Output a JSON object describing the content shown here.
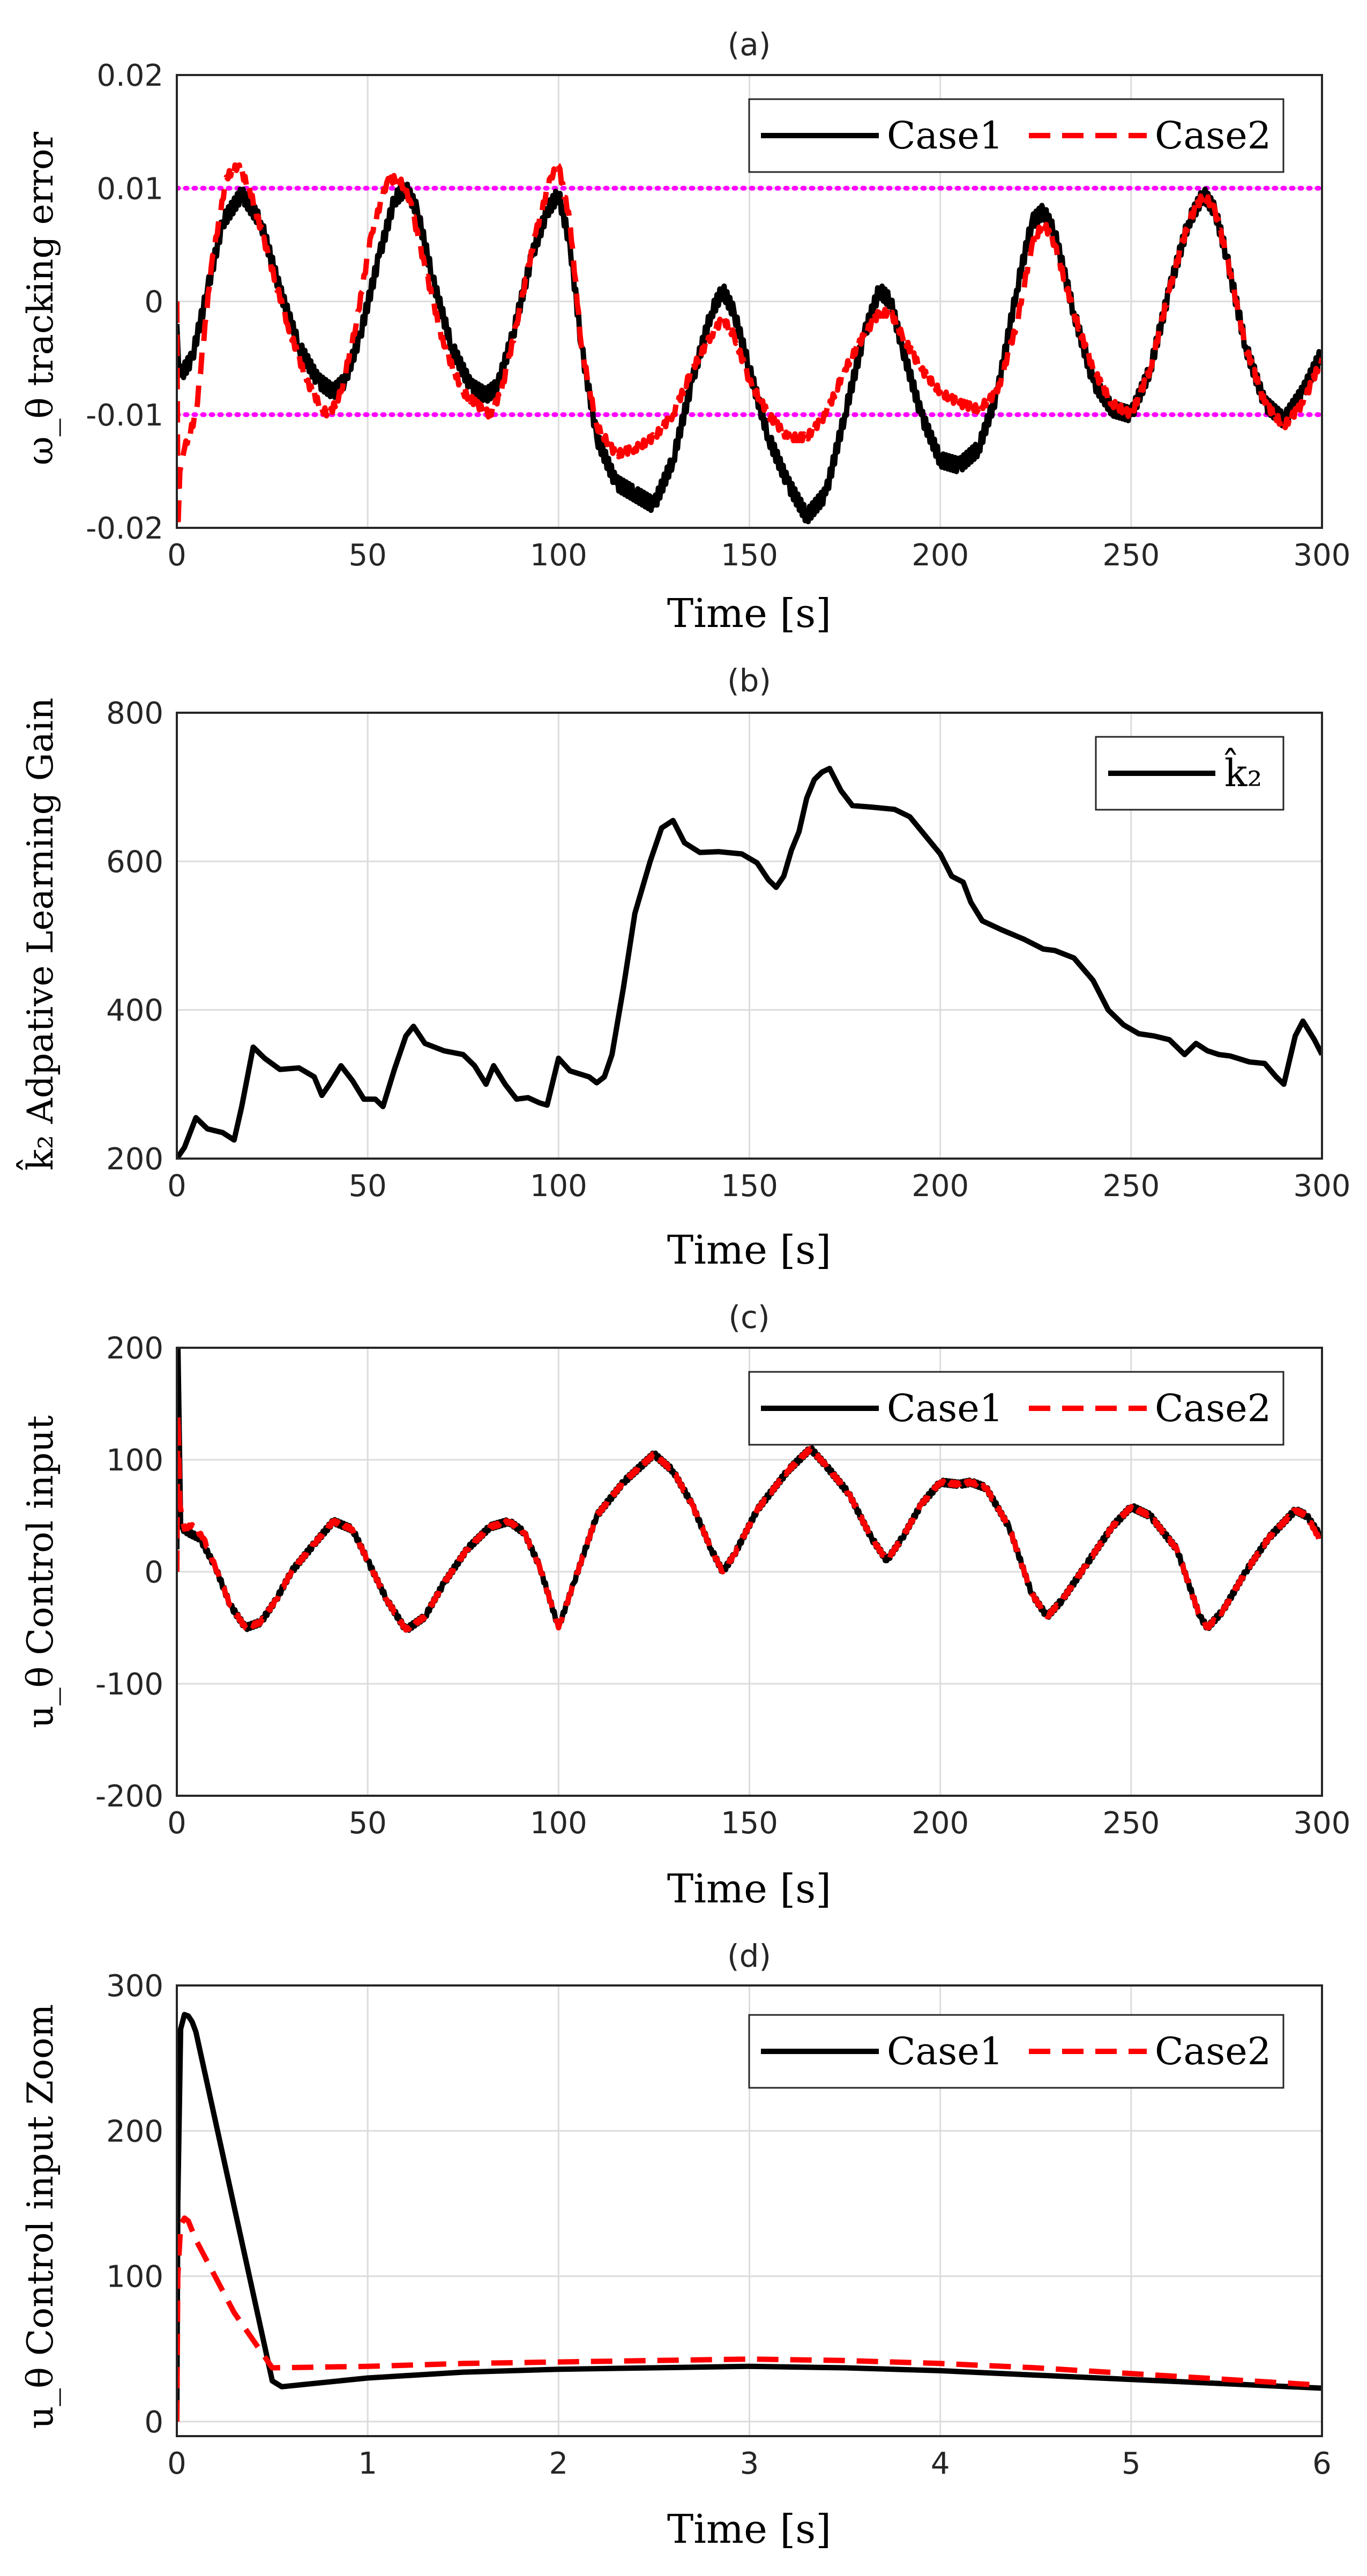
{
  "chart_data": [
    {
      "type": "line",
      "panel": "(a)",
      "title": "(a)",
      "xlabel": "Time [s]",
      "ylabel": "ω_θ tracking error",
      "xlim": [
        0,
        300
      ],
      "ylim": [
        -0.02,
        0.02
      ],
      "xticks": [
        0,
        50,
        100,
        150,
        200,
        250,
        300
      ],
      "yticks": [
        -0.02,
        -0.01,
        0,
        0.01,
        0.02
      ],
      "xtick_labels": [
        "0",
        "50",
        "100",
        "150",
        "200",
        "250",
        "300"
      ],
      "ytick_labels": [
        "-0.02",
        "-0.01",
        "0",
        "0.01",
        "0.02"
      ],
      "legend": [
        "Case1",
        "Case2"
      ],
      "reference_lines": [
        {
          "y": 0.01,
          "color": "#ff00ff",
          "style": "dotted"
        },
        {
          "y": -0.01,
          "color": "#ff00ff",
          "style": "dotted"
        }
      ],
      "series": [
        {
          "name": "Case1",
          "color": "#000000",
          "style": "solid",
          "ripple": 0.0012,
          "x": [
            0,
            0.5,
            1,
            4,
            8,
            12,
            17,
            22,
            27,
            32,
            37,
            41,
            44,
            48,
            53,
            57,
            60,
            63,
            67,
            72,
            77,
            81,
            84,
            88,
            93,
            97,
            100,
            103,
            106,
            110,
            115,
            120,
            125,
            130,
            135,
            140,
            143,
            146,
            150,
            155,
            160,
            165,
            170,
            175,
            180,
            184,
            187,
            190,
            195,
            200,
            205,
            210,
            215,
            220,
            224,
            227,
            230,
            235,
            240,
            245,
            250,
            255,
            260,
            265,
            269,
            272,
            275,
            280,
            285,
            290,
            295,
            300
          ],
          "y": [
            -0.002,
            -0.006,
            -0.0065,
            -0.005,
            0.001,
            0.007,
            0.0095,
            0.007,
            0.001,
            -0.004,
            -0.007,
            -0.008,
            -0.007,
            -0.003,
            0.004,
            0.009,
            0.01,
            0.008,
            0.002,
            -0.004,
            -0.0075,
            -0.0083,
            -0.0075,
            -0.003,
            0.004,
            0.008,
            0.0095,
            0.005,
            -0.004,
            -0.012,
            -0.016,
            -0.017,
            -0.018,
            -0.014,
            -0.007,
            -0.001,
            0.001,
            -0.001,
            -0.006,
            -0.012,
            -0.016,
            -0.019,
            -0.017,
            -0.01,
            -0.003,
            0.001,
            0,
            -0.004,
            -0.01,
            -0.014,
            -0.0145,
            -0.013,
            -0.008,
            0.001,
            0.007,
            0.008,
            0.006,
            -0.001,
            -0.007,
            -0.0095,
            -0.01,
            -0.006,
            0.001,
            0.007,
            0.0095,
            0.008,
            0.004,
            -0.004,
            -0.009,
            -0.0105,
            -0.008,
            -0.0045
          ]
        },
        {
          "name": "Case2",
          "color": "#ff0000",
          "style": "dashed",
          "ripple": 0.0006,
          "x": [
            0,
            0.3,
            0.8,
            2,
            5,
            9,
            13,
            16,
            19,
            24,
            29,
            34,
            38,
            40,
            43,
            47,
            51,
            55,
            58,
            61,
            65,
            70,
            75,
            80,
            82,
            85,
            89,
            94,
            98,
            100,
            103,
            106,
            110,
            115,
            120,
            125,
            130,
            135,
            140,
            143,
            146,
            150,
            155,
            160,
            165,
            170,
            175,
            180,
            184,
            187,
            190,
            195,
            200,
            205,
            210,
            215,
            220,
            224,
            227,
            230,
            235,
            240,
            245,
            250,
            255,
            260,
            265,
            269,
            272,
            275,
            280,
            285,
            290,
            295,
            300
          ],
          "y": [
            0,
            -0.02,
            -0.015,
            -0.013,
            -0.01,
            0.003,
            0.011,
            0.012,
            0.01,
            0.004,
            -0.002,
            -0.007,
            -0.0095,
            -0.01,
            -0.008,
            -0.002,
            0.006,
            0.0105,
            0.011,
            0.009,
            0.003,
            -0.004,
            -0.008,
            -0.0095,
            -0.01,
            -0.008,
            -0.002,
            0.006,
            0.011,
            0.012,
            0.007,
            -0.004,
            -0.011,
            -0.0135,
            -0.013,
            -0.012,
            -0.01,
            -0.006,
            -0.003,
            -0.0015,
            -0.003,
            -0.007,
            -0.01,
            -0.012,
            -0.012,
            -0.01,
            -0.006,
            -0.003,
            -0.001,
            -0.001,
            -0.003,
            -0.006,
            -0.008,
            -0.009,
            -0.0095,
            -0.008,
            -0.002,
            0.005,
            0.007,
            0.005,
            -0.001,
            -0.006,
            -0.009,
            -0.01,
            -0.006,
            0.001,
            0.007,
            0.0095,
            0.008,
            0.004,
            -0.004,
            -0.009,
            -0.011,
            -0.009,
            -0.005
          ]
        }
      ]
    },
    {
      "type": "line",
      "panel": "(b)",
      "title": "(b)",
      "xlabel": "Time [s]",
      "ylabel": "k̂₂ Adpative Learning Gain",
      "xlim": [
        0,
        300
      ],
      "ylim": [
        200,
        800
      ],
      "xticks": [
        0,
        50,
        100,
        150,
        200,
        250,
        300
      ],
      "yticks": [
        200,
        400,
        600,
        800
      ],
      "xtick_labels": [
        "0",
        "50",
        "100",
        "150",
        "200",
        "250",
        "300"
      ],
      "ytick_labels": [
        "200",
        "400",
        "600",
        "800"
      ],
      "legend": [
        "k̂₂"
      ],
      "series": [
        {
          "name": "k̂₂",
          "color": "#000000",
          "style": "solid",
          "ripple": 0,
          "x": [
            0,
            2,
            5,
            8,
            12,
            15,
            17,
            20,
            23,
            27,
            32,
            36,
            38,
            40,
            43,
            46,
            49,
            52,
            54,
            57,
            60,
            62,
            65,
            70,
            75,
            78,
            81,
            83,
            86,
            89,
            92,
            95,
            97,
            100,
            103,
            108,
            110,
            112,
            114,
            117,
            120,
            124,
            127,
            130,
            133,
            137,
            142,
            148,
            152,
            155,
            157,
            159,
            161,
            163,
            165,
            167,
            169,
            171,
            174,
            177,
            182,
            188,
            192,
            196,
            200,
            203,
            206,
            208,
            211,
            216,
            222,
            227,
            230,
            235,
            240,
            244,
            248,
            252,
            256,
            260,
            264,
            267,
            270,
            273,
            276,
            281,
            285,
            288,
            290,
            293,
            295,
            298,
            300
          ],
          "y": [
            200,
            215,
            255,
            240,
            235,
            225,
            270,
            350,
            335,
            320,
            322,
            310,
            285,
            300,
            325,
            305,
            280,
            280,
            270,
            320,
            365,
            378,
            355,
            345,
            340,
            325,
            300,
            325,
            300,
            280,
            282,
            275,
            272,
            335,
            318,
            310,
            302,
            310,
            340,
            430,
            530,
            600,
            645,
            655,
            625,
            612,
            613,
            610,
            598,
            575,
            565,
            580,
            615,
            640,
            685,
            710,
            720,
            725,
            695,
            675,
            673,
            670,
            660,
            635,
            610,
            580,
            572,
            545,
            520,
            508,
            495,
            482,
            480,
            470,
            440,
            400,
            380,
            368,
            365,
            360,
            340,
            355,
            345,
            340,
            338,
            330,
            328,
            310,
            300,
            365,
            385,
            360,
            340
          ]
        }
      ]
    },
    {
      "type": "line",
      "panel": "(c)",
      "title": "(c)",
      "xlabel": "Time [s]",
      "ylabel": "u_θ Control input",
      "xlim": [
        0,
        300
      ],
      "ylim": [
        -200,
        200
      ],
      "xticks": [
        0,
        50,
        100,
        150,
        200,
        250,
        300
      ],
      "yticks": [
        -200,
        -100,
        0,
        100,
        200
      ],
      "xtick_labels": [
        "0",
        "50",
        "100",
        "150",
        "200",
        "250",
        "300"
      ],
      "ytick_labels": [
        "-200",
        "-100",
        "0",
        "100",
        "200"
      ],
      "legend": [
        "Case1",
        "Case2"
      ],
      "series": [
        {
          "name": "Case1",
          "color": "#000000",
          "style": "solid",
          "ripple": 4,
          "x": [
            0,
            0.3,
            1,
            3,
            6,
            10,
            14,
            18,
            22,
            26,
            30,
            36,
            41,
            46,
            50,
            55,
            60,
            65,
            70,
            76,
            82,
            87,
            91,
            95,
            100,
            104,
            110,
            117,
            125,
            130,
            135,
            140,
            143,
            146,
            152,
            160,
            166,
            170,
            176,
            182,
            186,
            190,
            195,
            200,
            205,
            208,
            212,
            218,
            224,
            228,
            232,
            238,
            245,
            250,
            255,
            262,
            268,
            270,
            274,
            280,
            286,
            293,
            296,
            300
          ],
          "y": [
            20,
            200,
            40,
            35,
            30,
            5,
            -30,
            -50,
            -45,
            -25,
            0,
            25,
            45,
            38,
            10,
            -25,
            -52,
            -40,
            -10,
            20,
            40,
            45,
            35,
            5,
            -50,
            -10,
            50,
            80,
            105,
            90,
            60,
            20,
            0,
            15,
            55,
            90,
            110,
            95,
            70,
            30,
            10,
            30,
            60,
            80,
            78,
            80,
            75,
            40,
            -20,
            -40,
            -25,
            5,
            40,
            58,
            50,
            20,
            -40,
            -50,
            -35,
            0,
            30,
            55,
            50,
            30
          ]
        },
        {
          "name": "Case2",
          "color": "#ff0000",
          "style": "dashed",
          "ripple": 2.5,
          "x": [
            0,
            0.3,
            0.8,
            2,
            4,
            7,
            10,
            14,
            18,
            22,
            26,
            30,
            36,
            41,
            46,
            50,
            55,
            60,
            65,
            70,
            76,
            82,
            87,
            91,
            95,
            100,
            104,
            110,
            117,
            125,
            130,
            135,
            140,
            143,
            146,
            152,
            160,
            166,
            170,
            176,
            182,
            186,
            190,
            195,
            200,
            205,
            208,
            212,
            218,
            224,
            228,
            232,
            238,
            245,
            250,
            255,
            262,
            268,
            270,
            274,
            280,
            286,
            293,
            296,
            300
          ],
          "y": [
            0,
            140,
            60,
            38,
            42,
            30,
            5,
            -30,
            -50,
            -45,
            -25,
            0,
            25,
            45,
            38,
            10,
            -25,
            -52,
            -40,
            -10,
            20,
            40,
            45,
            35,
            5,
            -50,
            -10,
            50,
            80,
            105,
            90,
            60,
            20,
            0,
            15,
            55,
            90,
            110,
            95,
            70,
            30,
            10,
            30,
            60,
            80,
            78,
            80,
            75,
            40,
            -20,
            -40,
            -25,
            5,
            40,
            58,
            50,
            20,
            -40,
            -50,
            -35,
            0,
            30,
            55,
            50,
            25
          ]
        }
      ]
    },
    {
      "type": "line",
      "panel": "(d)",
      "title": "(d)",
      "xlabel": "Time [s]",
      "ylabel": "u_θ Control input Zoom",
      "xlim": [
        0,
        6
      ],
      "ylim": [
        -10,
        300
      ],
      "xticks": [
        0,
        1,
        2,
        3,
        4,
        5,
        6
      ],
      "yticks": [
        0,
        100,
        200,
        300
      ],
      "xtick_labels": [
        "0",
        "1",
        "2",
        "3",
        "4",
        "5",
        "6"
      ],
      "ytick_labels": [
        "0",
        "100",
        "200",
        "300"
      ],
      "legend": [
        "Case1",
        "Case2"
      ],
      "series": [
        {
          "name": "Case1",
          "color": "#000000",
          "style": "solid",
          "ripple": 0,
          "x": [
            0,
            0.005,
            0.02,
            0.04,
            0.06,
            0.08,
            0.1,
            0.5,
            0.55,
            1,
            1.5,
            2,
            2.5,
            3,
            3.5,
            4,
            4.5,
            5,
            5.5,
            6
          ],
          "y": [
            0,
            150,
            270,
            280,
            279,
            275,
            268,
            28,
            24,
            30,
            34,
            36,
            37,
            38,
            37,
            35,
            32,
            29,
            26,
            23
          ]
        },
        {
          "name": "Case2",
          "color": "#ff0000",
          "style": "dashed",
          "ripple": 0,
          "x": [
            0,
            0.005,
            0.02,
            0.04,
            0.06,
            0.1,
            0.2,
            0.3,
            0.5,
            1,
            1.5,
            2,
            2.5,
            3,
            3.5,
            4,
            4.5,
            5,
            5.5,
            6
          ],
          "y": [
            0,
            100,
            135,
            140,
            138,
            125,
            100,
            75,
            37,
            38,
            40,
            41,
            42,
            43,
            42,
            40,
            37,
            33,
            29,
            25
          ]
        }
      ]
    }
  ]
}
